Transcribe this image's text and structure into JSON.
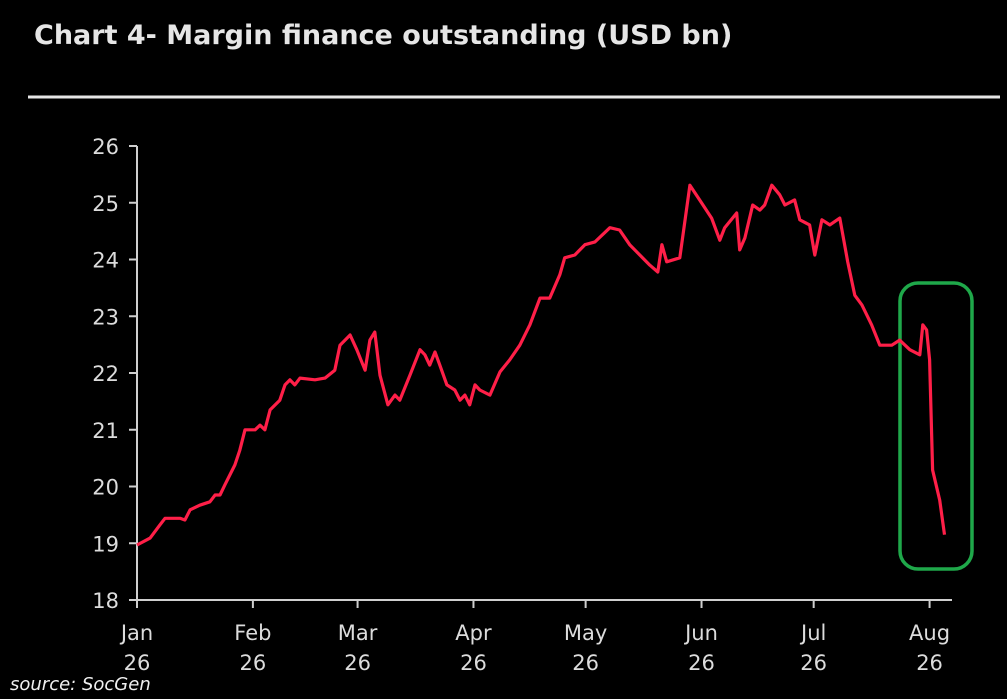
{
  "chart_data": {
    "type": "line",
    "title": "Chart 4- Margin finance outstanding (USD bn)",
    "source": "source: SocGen",
    "x": [
      0,
      3.5,
      6.1,
      7.5,
      11.5,
      12.8,
      14.2,
      16.8,
      19.5,
      20.9,
      22.2,
      23.5,
      26.2,
      27.5,
      28.9,
      31.6,
      32.9,
      34.2,
      35.6,
      38.2,
      39.6,
      40.9,
      42.2,
      43.6,
      47.6,
      50.3,
      52.9,
      54.3,
      57.0,
      58.8,
      61.0,
      62.3,
      63.6,
      65.0,
      67.1,
      69.0,
      70.3,
      73.0,
      75.7,
      77.0,
      78.3,
      79.7,
      81.0,
      82.9,
      85.0,
      86.4,
      87.7,
      89.0,
      90.4,
      91.7,
      94.4,
      97.1,
      99.7,
      102.4,
      105.1,
      107.8,
      110.4,
      113.1,
      114.4,
      117.1,
      119.8,
      122.5,
      126.5,
      129.1,
      131.8,
      134.5,
      137.2,
      139.3,
      140.4,
      141.7,
      145.2,
      147.9,
      150.5,
      153.7,
      155.9,
      157.2,
      160.4,
      161.2,
      162.6,
      164.7,
      166.6,
      167.9,
      169.8,
      171.9,
      173.3,
      175.9,
      177.3,
      179.9,
      181.3,
      183.2,
      185.3,
      188.0,
      190.1,
      192.0,
      193.9,
      196.5,
      198.7,
      201.9,
      204.0,
      206.7,
      209.4,
      210.2,
      211.2,
      212.0,
      212.8,
      214.7,
      216.0
    ],
    "series": [
      {
        "color": "#ff1f48",
        "values": [
          18.97,
          19.09,
          19.32,
          19.44,
          19.44,
          19.41,
          19.59,
          19.67,
          19.73,
          19.85,
          19.85,
          20.03,
          20.38,
          20.64,
          21.0,
          21.0,
          21.08,
          21.0,
          21.35,
          21.52,
          21.79,
          21.88,
          21.79,
          21.91,
          21.88,
          21.91,
          22.05,
          22.49,
          22.67,
          22.41,
          22.05,
          22.58,
          22.72,
          21.96,
          21.44,
          21.61,
          21.52,
          21.96,
          22.41,
          22.32,
          22.14,
          22.37,
          22.14,
          21.79,
          21.7,
          21.52,
          21.61,
          21.44,
          21.79,
          21.7,
          21.61,
          22.02,
          22.23,
          22.49,
          22.85,
          23.32,
          23.32,
          23.73,
          24.03,
          24.08,
          24.26,
          24.31,
          24.56,
          24.52,
          24.26,
          24.08,
          23.9,
          23.78,
          24.26,
          23.96,
          24.03,
          25.31,
          25.05,
          24.73,
          24.34,
          24.56,
          24.82,
          24.17,
          24.38,
          24.96,
          24.87,
          24.96,
          25.31,
          25.14,
          24.96,
          25.05,
          24.7,
          24.61,
          24.08,
          24.7,
          24.61,
          24.73,
          23.96,
          23.37,
          23.2,
          22.85,
          22.49,
          22.49,
          22.58,
          22.41,
          22.32,
          22.85,
          22.76,
          22.23,
          20.29,
          19.76,
          19.15
        ]
      }
    ],
    "xlim": [
      0,
      218
    ],
    "xticks": [
      {
        "value": 0,
        "label": "Jan 26"
      },
      {
        "value": 31,
        "label": "Feb 26"
      },
      {
        "value": 59,
        "label": "Mar 26"
      },
      {
        "value": 90,
        "label": "Apr 26"
      },
      {
        "value": 120,
        "label": "May 26"
      },
      {
        "value": 151,
        "label": "Jun 26"
      },
      {
        "value": 181,
        "label": "Jul 26"
      },
      {
        "value": 212,
        "label": "Aug 26"
      }
    ],
    "ylim": [
      18,
      26
    ],
    "yticks": [
      18,
      19,
      20,
      21,
      22,
      23,
      24,
      25,
      26
    ]
  }
}
